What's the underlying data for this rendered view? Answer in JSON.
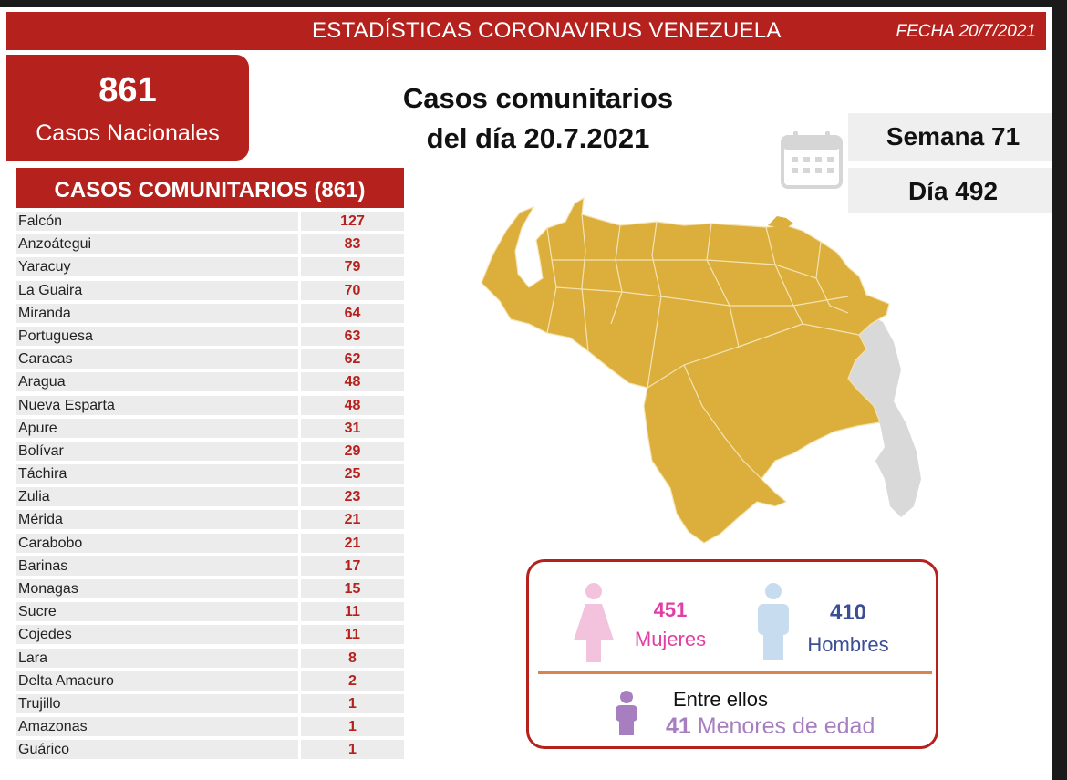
{
  "header": {
    "title": "ESTADÍSTICAS CORONAVIRUS VENEZUELA",
    "date": "FECHA 20/7/2021"
  },
  "national": {
    "count": "861",
    "label": "Casos Nacionales"
  },
  "main_title": {
    "line1": "Casos comunitarios",
    "line2": "del día 20.7.2021"
  },
  "calendar": {
    "icon": "calendar-icon",
    "week": "Semana 71",
    "day": "Día 492"
  },
  "table": {
    "header": "CASOS COMUNITARIOS (861)",
    "rows": [
      {
        "state": "Falcón",
        "cases": "127"
      },
      {
        "state": "Anzoátegui",
        "cases": "83"
      },
      {
        "state": "Yaracuy",
        "cases": "79"
      },
      {
        "state": "La Guaira",
        "cases": "70"
      },
      {
        "state": "Miranda",
        "cases": "64"
      },
      {
        "state": "Portuguesa",
        "cases": "63"
      },
      {
        "state": "Caracas",
        "cases": "62"
      },
      {
        "state": "Aragua",
        "cases": "48"
      },
      {
        "state": "Nueva Esparta",
        "cases": "48"
      },
      {
        "state": "Apure",
        "cases": "31"
      },
      {
        "state": "Bolívar",
        "cases": "29"
      },
      {
        "state": "Táchira",
        "cases": "25"
      },
      {
        "state": "Zulia",
        "cases": "23"
      },
      {
        "state": "Mérida",
        "cases": "21"
      },
      {
        "state": "Carabobo",
        "cases": "21"
      },
      {
        "state": "Barinas",
        "cases": "17"
      },
      {
        "state": "Monagas",
        "cases": "15"
      },
      {
        "state": "Sucre",
        "cases": "11"
      },
      {
        "state": "Cojedes",
        "cases": "11"
      },
      {
        "state": "Lara",
        "cases": "8"
      },
      {
        "state": "Delta Amacuro",
        "cases": "2"
      },
      {
        "state": "Trujillo",
        "cases": "1"
      },
      {
        "state": "Amazonas",
        "cases": "1"
      },
      {
        "state": "Guárico",
        "cases": "1"
      }
    ]
  },
  "gender": {
    "women_count": "451",
    "women_label": "Mujeres",
    "men_count": "410",
    "men_label": "Hombres",
    "minors_intro": "Entre ellos",
    "minors_count": "41",
    "minors_label": "Menores de edad"
  },
  "colors": {
    "brand_red": "#b5221d",
    "map_fill": "#dcaf3c",
    "disputed_fill": "#d9d9d9",
    "women": "#e03fa3",
    "men": "#3b4f94",
    "minors": "#a77fc0"
  }
}
